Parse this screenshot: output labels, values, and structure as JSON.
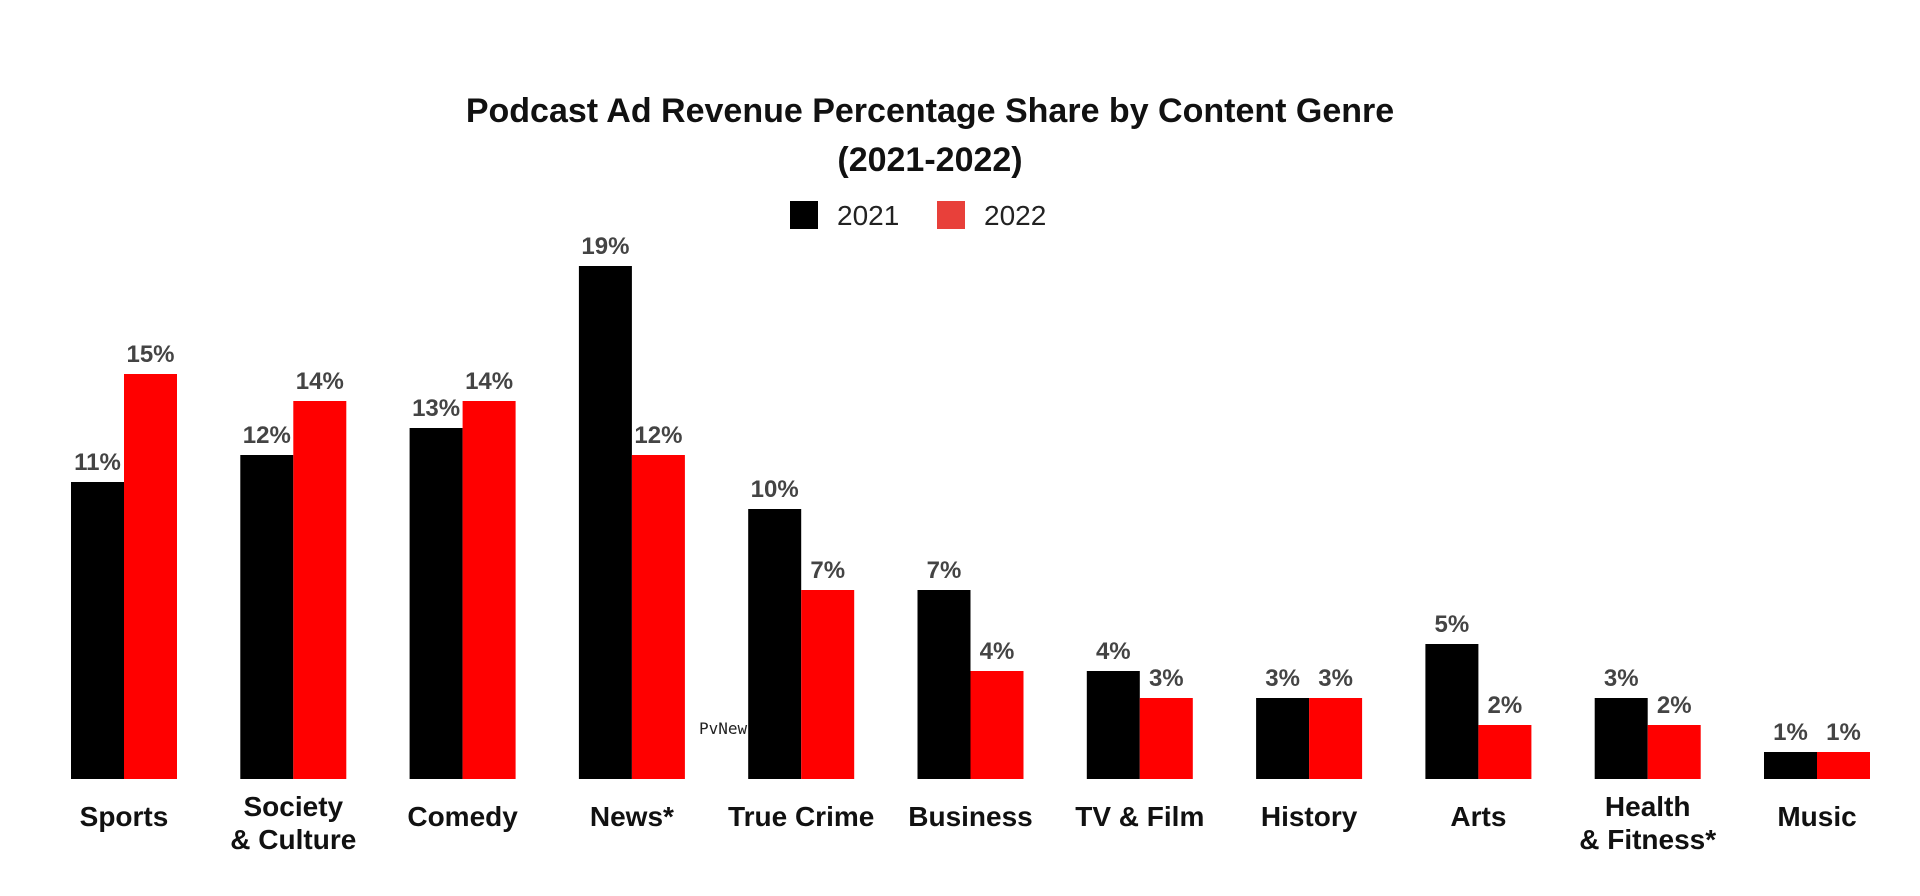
{
  "chart_data": {
    "type": "bar",
    "title_lines": [
      "Podcast Ad Revenue Percentage Share by Content Genre",
      "(2021-2022)"
    ],
    "xlabel": "",
    "ylabel": "",
    "ylim": [
      0,
      20
    ],
    "grid": false,
    "legend_position": "top-center",
    "categories": [
      [
        "Sports"
      ],
      [
        "Society",
        "& Culture"
      ],
      [
        "Comedy"
      ],
      [
        "News*"
      ],
      [
        "True Crime"
      ],
      [
        "Business"
      ],
      [
        "TV & Film"
      ],
      [
        "History"
      ],
      [
        "Arts"
      ],
      [
        "Health",
        "& Fitness*"
      ],
      [
        "Music"
      ]
    ],
    "series": [
      {
        "name": "2021",
        "color": "#000000",
        "values": [
          11,
          12,
          13,
          19,
          10,
          7,
          4,
          3,
          5,
          3,
          1
        ],
        "labels": [
          "11%",
          "12%",
          "13%",
          "19%",
          "10%",
          "7%",
          "4%",
          "3%",
          "5%",
          "3%",
          "1%"
        ]
      },
      {
        "name": "2022",
        "color": "#ff0000",
        "legend_color": "#e8403a",
        "values": [
          15,
          14,
          14,
          12,
          7,
          4,
          3,
          3,
          2,
          2,
          1
        ],
        "labels": [
          "15%",
          "14%",
          "14%",
          "12%",
          "7%",
          "4%",
          "3%",
          "3%",
          "2%",
          "2%",
          "1%"
        ]
      }
    ],
    "watermark": "PvNew"
  }
}
